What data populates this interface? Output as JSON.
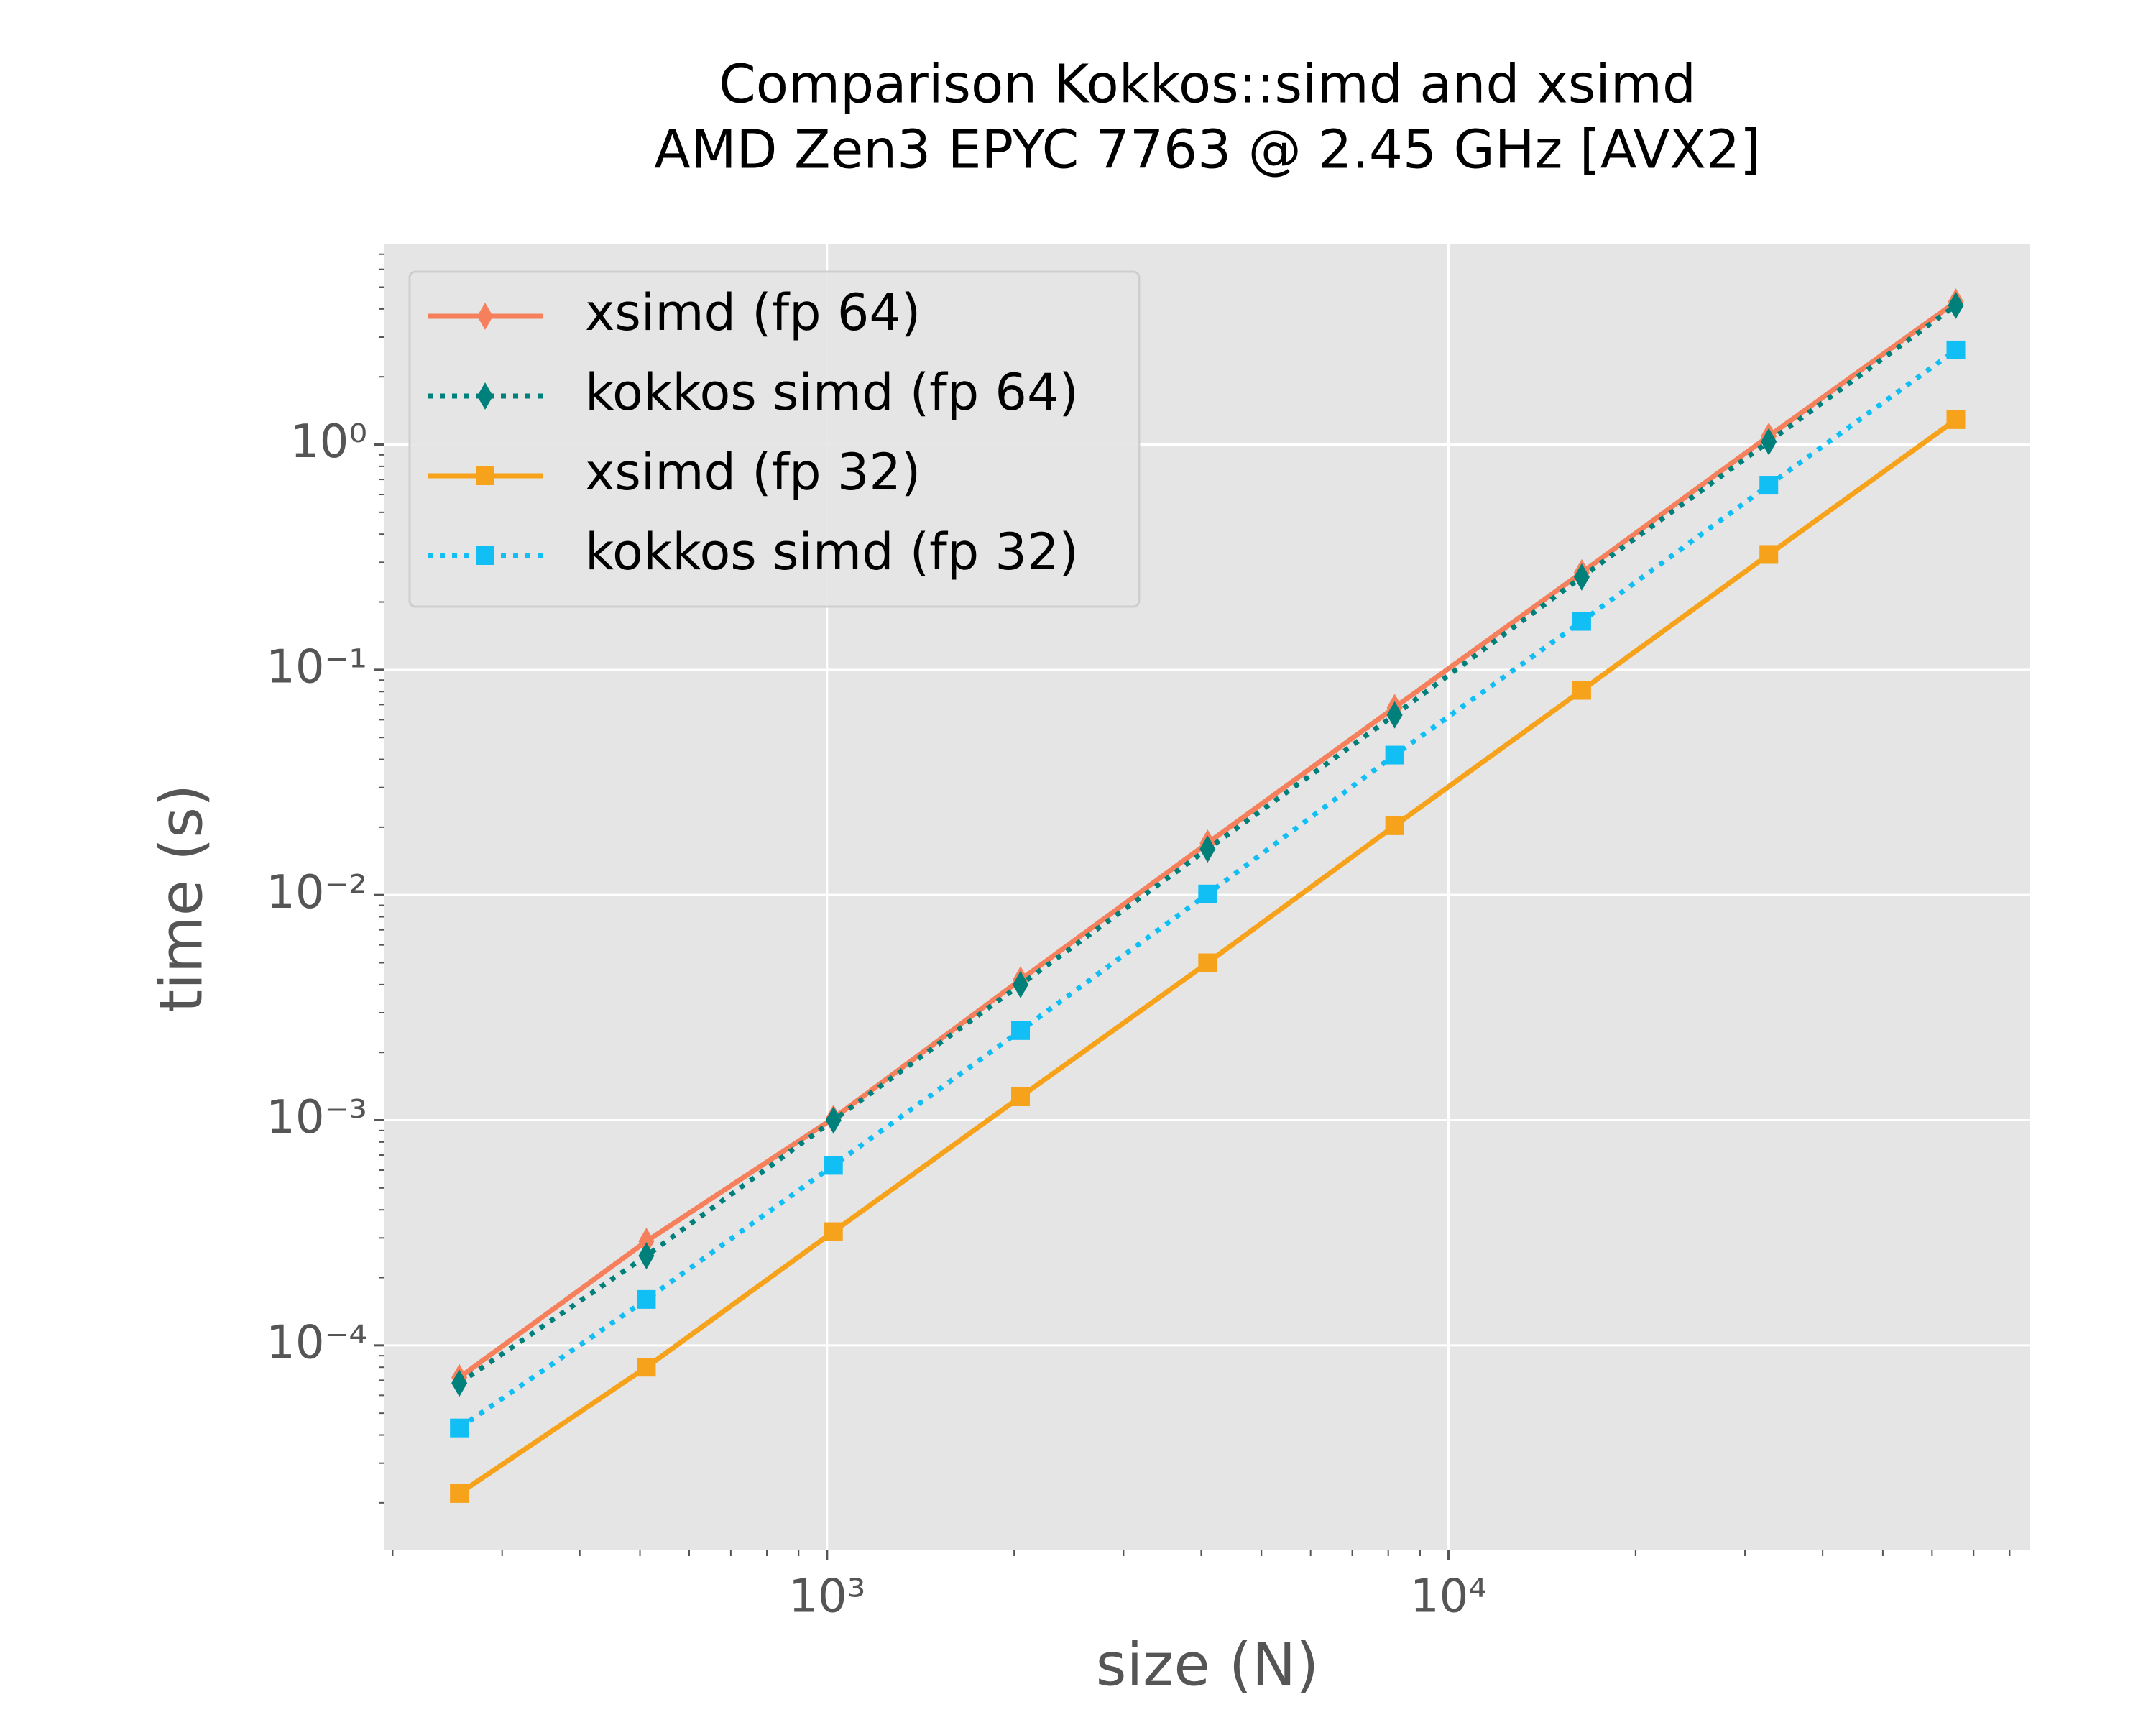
{
  "chart_data": {
    "type": "line",
    "title": [
      "Comparison Kokkos::simd and xsimd",
      "AMD Zen3 EPYC 7763 @ 2.45 GHz [AVX2]"
    ],
    "xlabel": "size (N)",
    "ylabel": "time (s)",
    "x": [
      256,
      512,
      1024,
      2048,
      4096,
      8192,
      16384,
      32768,
      65536
    ],
    "series": [
      {
        "name": "xsimd (fp 64)",
        "color": "#f6805c",
        "marker": "d",
        "linestyle": "solid",
        "values": [
          7.2e-05,
          0.00029,
          0.00102,
          0.0042,
          0.017,
          0.068,
          0.27,
          1.09,
          4.3
        ]
      },
      {
        "name": "kokkos simd (fp 64)",
        "color": "#00807a",
        "marker": "d",
        "linestyle": "dotted",
        "values": [
          6.8e-05,
          0.00025,
          0.001,
          0.004,
          0.016,
          0.063,
          0.258,
          1.03,
          4.15
        ]
      },
      {
        "name": "xsimd (fp 32)",
        "color": "#f7a21b",
        "marker": "s",
        "linestyle": "solid",
        "values": [
          2.2e-05,
          8e-05,
          0.00032,
          0.00127,
          0.005,
          0.0203,
          0.081,
          0.325,
          1.29
        ]
      },
      {
        "name": "kokkos simd (fp 32)",
        "color": "#11bff5",
        "marker": "s",
        "linestyle": "dotted",
        "values": [
          4.3e-05,
          0.00016,
          0.00063,
          0.0025,
          0.0101,
          0.0418,
          0.164,
          0.66,
          2.63
        ]
      }
    ],
    "xscale": "log",
    "yscale": "log",
    "xlim": [
      194,
      86100
    ],
    "ylim": [
      1.23e-05,
      7.8
    ],
    "xticks": [
      {
        "value": 1000,
        "label": "10³"
      },
      {
        "value": 10000,
        "label": "10⁴"
      }
    ],
    "yticks": [
      {
        "value": 0.0001,
        "label": "10⁻⁴"
      },
      {
        "value": 0.001,
        "label": "10⁻³"
      },
      {
        "value": 0.01,
        "label": "10⁻²"
      },
      {
        "value": 0.1,
        "label": "10⁻¹"
      },
      {
        "value": 1,
        "label": "10⁰"
      }
    ],
    "minor_ticks": true,
    "grid": true,
    "legend": "upper left"
  }
}
